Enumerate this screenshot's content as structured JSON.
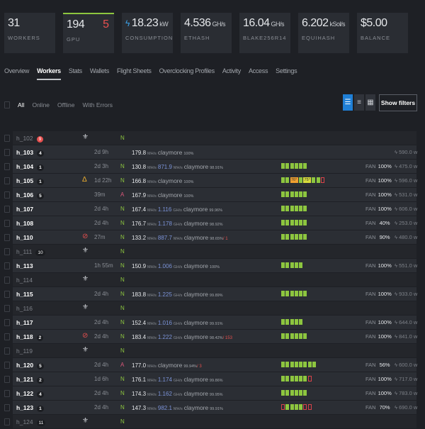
{
  "stats": [
    {
      "value": "31",
      "unit": "",
      "label": "WORKERS"
    },
    {
      "value": "194",
      "unit": "",
      "label": "GPU",
      "error": "5",
      "accent": "#8dc63f"
    },
    {
      "value": "18.23",
      "unit": "kW",
      "label": "CONSUMPTION",
      "icon": "bolt-icon"
    },
    {
      "value": "4.536",
      "unit": "GH/s",
      "label": "ETHASH"
    },
    {
      "value": "16.04",
      "unit": "GH/s",
      "label": "BLAKE256R14"
    },
    {
      "value": "6.202",
      "unit": "kSol/s",
      "label": "EQUIHASH"
    },
    {
      "value": "$5.00",
      "unit": "",
      "label": "BALANCE"
    }
  ],
  "tabs": [
    "Overview",
    "Workers",
    "Stats",
    "Wallets",
    "Flight Sheets",
    "Overclocking Profiles",
    "Activity",
    "Access",
    "Settings"
  ],
  "active_tab": "Workers",
  "filters": [
    "All",
    "Online",
    "Offline",
    "With Errors"
  ],
  "show_filters": "Show filters",
  "colors": {
    "gpu_ok": "#8dc63f",
    "gpu_err": "#d9434a",
    "accent_blue": "#1f7fd6",
    "error": "#e8504f"
  },
  "workers": [
    {
      "name": "h_102",
      "badge": "9",
      "badge_red": true,
      "offline": true,
      "icon": "offline",
      "state": "N"
    },
    {
      "name": "h_103",
      "badge": "4",
      "uptime": "2d 9h",
      "hr": "179.8",
      "hu": "MH/s",
      "miner": "claymore",
      "pct": "100%",
      "power": "590.0 w"
    },
    {
      "name": "h_104",
      "badge": "1",
      "uptime": "2d 3h",
      "state": "N",
      "hr": "130.8",
      "hu": "MH/s",
      "hr2": "871.9",
      "hu2": "MH/s",
      "miner": "claymore",
      "pct": "98.91%",
      "gpus": "gggggg",
      "fan": "100%",
      "power": "475.0 w"
    },
    {
      "name": "h_105",
      "badge": "1",
      "icon": "flame",
      "uptime": "1d 22h",
      "state": "N",
      "hr": "166.8",
      "hu": "MH/s",
      "miner": "claymore",
      "pct": "100%",
      "gpus": [
        "g",
        "g",
        {
          "t": "76°",
          "c": "#f0a030"
        },
        "g",
        {
          "t": "75°",
          "c": "#d8dc3c"
        },
        "g",
        "g",
        "r"
      ],
      "fan": "100%",
      "power": "596.0 w"
    },
    {
      "name": "h_106",
      "badge": "5",
      "uptime": "39m",
      "state": "A",
      "hr": "167.9",
      "hu": "MH/s",
      "miner": "claymore",
      "pct": "100%",
      "gpus": "gggggg",
      "fan": "100%",
      "power": "531.0 w"
    },
    {
      "name": "h_107",
      "uptime": "2d 4h",
      "state": "N",
      "hr": "167.4",
      "hu": "MH/s",
      "hr2": "1.116",
      "hu2": "GH/s",
      "miner": "claymore",
      "pct": "99.96%",
      "gpus": "gggggg",
      "fan": "100%",
      "power": "606.0 w"
    },
    {
      "name": "h_108",
      "uptime": "2d 4h",
      "state": "N",
      "hr": "176.7",
      "hu": "MH/s",
      "hr2": "1.178",
      "hu2": "GH/s",
      "miner": "claymore",
      "pct": "98.92%",
      "gpus": "gggggg",
      "fan": "40%",
      "power": "253.0 w"
    },
    {
      "name": "h_110",
      "icon": "stop",
      "uptime": "27m",
      "state": "N",
      "hr": "133.2",
      "hu": "MH/s",
      "hr2": "887.7",
      "hu2": "MH/s",
      "miner": "claymore",
      "pct": "98.65%",
      "err": "/ 1",
      "gpus": "gggggg",
      "fan": "90%",
      "power": "480.0 w"
    },
    {
      "name": "h_111",
      "badge": "10",
      "offline": true,
      "icon": "offline",
      "state": "N"
    },
    {
      "name": "h_113",
      "uptime": "1h 55m",
      "state": "N",
      "hr": "150.9",
      "hu": "MH/s",
      "hr2": "1.006",
      "hu2": "GH/s",
      "miner": "claymore",
      "pct": "100%",
      "gpus": "ggggg",
      "fan": "100%",
      "power": "551.0 w"
    },
    {
      "name": "h_114",
      "offline": true,
      "icon": "offline",
      "state": "N"
    },
    {
      "name": "h_115",
      "uptime": "2d 4h",
      "state": "N",
      "hr": "183.8",
      "hu": "MH/s",
      "hr2": "1.225",
      "hu2": "GH/s",
      "miner": "claymore",
      "pct": "99.89%",
      "gpus": "gggggg",
      "fan": "100%",
      "power": "933.0 w"
    },
    {
      "name": "h_116",
      "offline": true,
      "icon": "offline",
      "state": "N"
    },
    {
      "name": "h_117",
      "uptime": "2d 4h",
      "state": "N",
      "hr": "152.4",
      "hu": "MH/s",
      "hr2": "1.016",
      "hu2": "GH/s",
      "miner": "claymore",
      "pct": "99.91%",
      "gpus": "ggggg",
      "fan": "100%",
      "power": "644.0 w"
    },
    {
      "name": "h_118",
      "badge": "2",
      "icon": "stop",
      "uptime": "2d 4h",
      "state": "N",
      "hr": "183.4",
      "hu": "MH/s",
      "hr2": "1.222",
      "hu2": "GH/s",
      "miner": "claymore",
      "pct": "98.42%",
      "err": "/ 153",
      "gpus": "gggggg",
      "fan": "100%",
      "power": "841.0 w"
    },
    {
      "name": "h_119",
      "offline": true,
      "icon": "offline",
      "state": "N"
    },
    {
      "name": "h_120",
      "badge": "5",
      "uptime": "2d 4h",
      "state": "A",
      "hr": "177.0",
      "hu": "MH/s",
      "miner": "claymore",
      "pct": "99.94%",
      "err": "/ 3",
      "gpus": "gggggggg",
      "fan": "56%",
      "power": "600.0 w"
    },
    {
      "name": "h_121",
      "badge": "2",
      "uptime": "1d 6h",
      "state": "N",
      "hr": "176.1",
      "hu": "MH/s",
      "hr2": "1.174",
      "hu2": "GH/s",
      "miner": "claymore",
      "pct": "99.86%",
      "gpus": "ggggggr",
      "fan": "100%",
      "power": "717.0 w"
    },
    {
      "name": "h_122",
      "badge": "4",
      "uptime": "2d 4h",
      "state": "N",
      "hr": "174.3",
      "hu": "MH/s",
      "hr2": "1.162",
      "hu2": "GH/s",
      "miner": "claymore",
      "pct": "99.95%",
      "gpus": "gggggg",
      "fan": "100%",
      "power": "783.0 w"
    },
    {
      "name": "h_123",
      "badge": "1",
      "uptime": "2d 4h",
      "state": "N",
      "hr": "147.3",
      "hu": "MH/s",
      "hr2": "982.1",
      "hu2": "MH/s",
      "miner": "claymore",
      "pct": "99.91%",
      "gpus": "rggggrr",
      "fan": "70%",
      "power": "690.0 w"
    },
    {
      "name": "h_124",
      "badge": "11",
      "offline": true,
      "icon": "offline",
      "state": "N"
    }
  ]
}
